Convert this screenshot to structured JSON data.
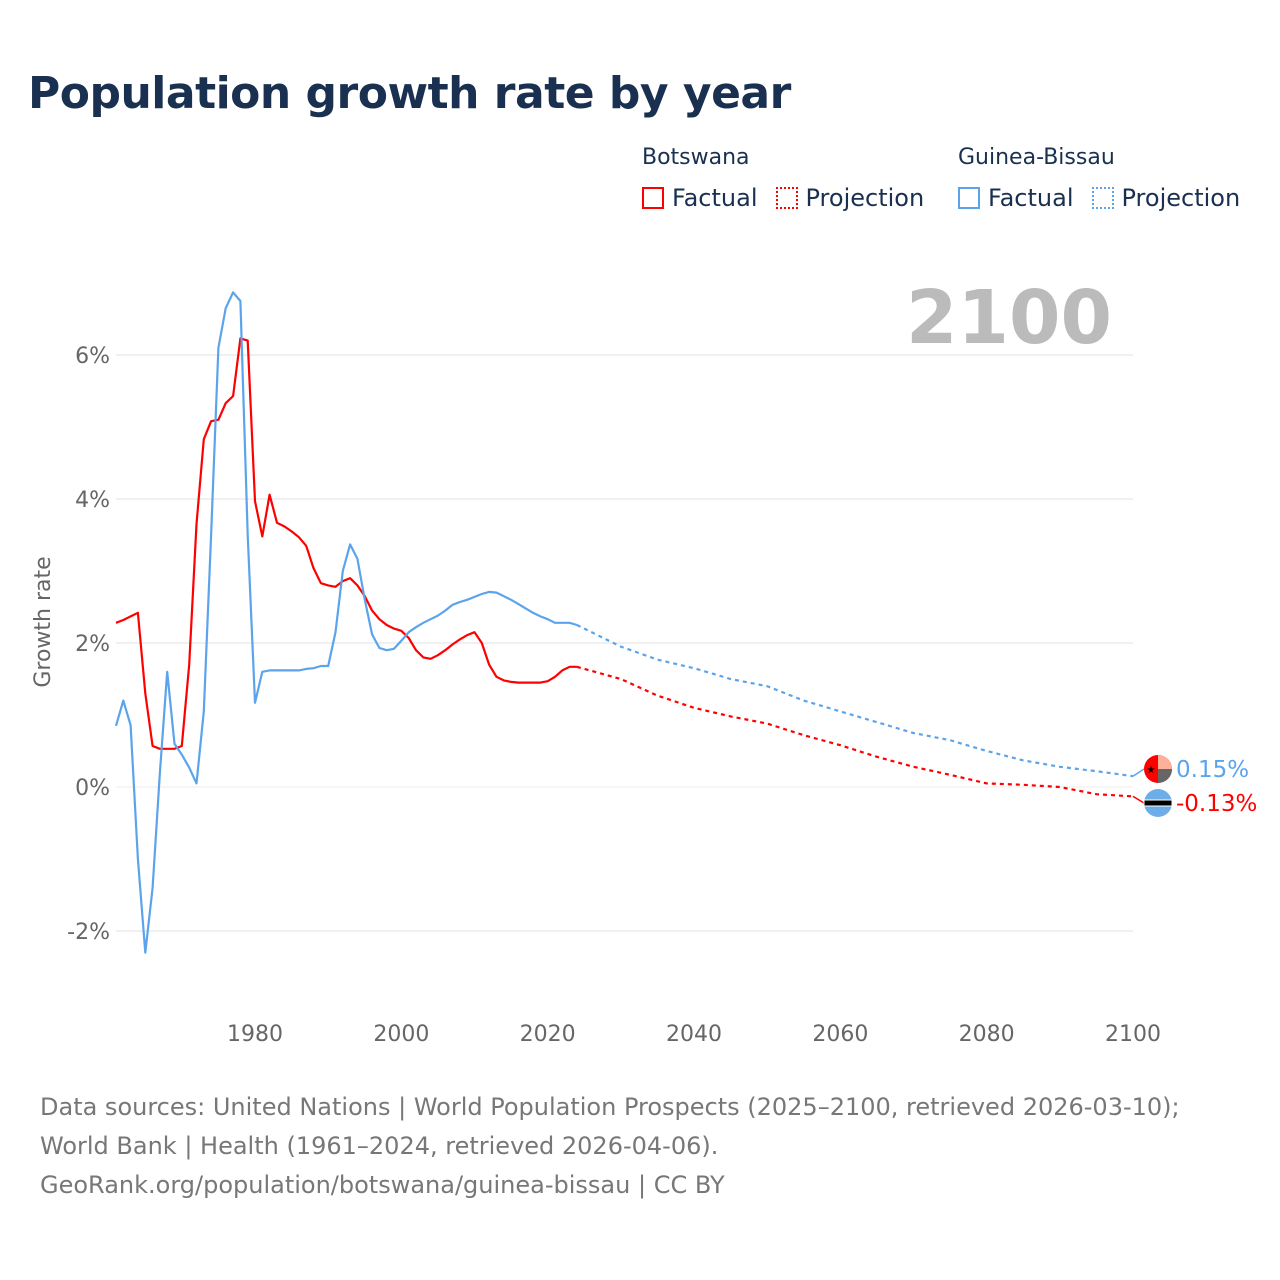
{
  "title": "Population growth rate by year",
  "legend": [
    {
      "country": "Botswana",
      "factual": "Factual",
      "projection": "Projection",
      "color": "#ff0000"
    },
    {
      "country": "Guinea-Bissau",
      "factual": "Factual",
      "projection": "Projection",
      "color": "#5ba4ec"
    }
  ],
  "footer": {
    "sources": "Data sources: United Nations | World Population Prospects (2025–2100, retrieved 2026-03-10); World Bank | Health (1961–2024, retrieved 2026-04-06).",
    "link": "GeoRank.org/population/botswana/guinea-bissau | CC BY"
  },
  "chart_data": {
    "type": "line",
    "title": "Population growth rate by year",
    "ylabel": "Growth rate",
    "xlabel": "",
    "year_label": "2100",
    "xlim": [
      1961,
      2100
    ],
    "ylim": [
      -3,
      7
    ],
    "x_ticks": [
      1980,
      2000,
      2020,
      2040,
      2060,
      2080,
      2100
    ],
    "y_ticks": [
      {
        "v": -2,
        "label": "-2%"
      },
      {
        "v": 0,
        "label": "0%"
      },
      {
        "v": 2,
        "label": "2%"
      },
      {
        "v": 4,
        "label": "4%"
      },
      {
        "v": 6,
        "label": "6%"
      }
    ],
    "grid": true,
    "series": [
      {
        "name": "Botswana",
        "color": "#ff0000",
        "end_label": "-0.13%",
        "flag_colors": [
          "#6daee8",
          "#000000",
          "#ffffff"
        ],
        "factual_start": 1961,
        "factual": [
          2.28,
          2.32,
          2.37,
          2.42,
          1.3,
          0.57,
          0.53,
          0.53,
          0.53,
          0.57,
          1.7,
          3.65,
          4.83,
          5.08,
          5.1,
          5.33,
          5.43,
          6.23,
          6.2,
          3.97,
          3.48,
          4.06,
          3.67,
          3.62,
          3.55,
          3.47,
          3.35,
          3.04,
          2.83,
          2.8,
          2.78,
          2.86,
          2.9,
          2.8,
          2.65,
          2.45,
          2.33,
          2.25,
          2.2,
          2.17,
          2.07,
          1.9,
          1.8,
          1.78,
          1.83,
          1.9,
          1.98,
          2.05,
          2.11,
          2.15,
          2.0,
          1.7,
          1.53,
          1.48,
          1.46,
          1.45,
          1.45,
          1.45,
          1.45,
          1.47,
          1.53,
          1.62,
          1.67,
          1.67
        ],
        "projection_x": [
          2024,
          2025,
          2030,
          2035,
          2040,
          2045,
          2050,
          2055,
          2060,
          2065,
          2070,
          2075,
          2080,
          2085,
          2090,
          2095,
          2100
        ],
        "projection": [
          1.67,
          1.64,
          1.5,
          1.27,
          1.1,
          0.98,
          0.88,
          0.72,
          0.58,
          0.42,
          0.28,
          0.17,
          0.05,
          0.03,
          0.0,
          -0.1,
          -0.13
        ]
      },
      {
        "name": "Guinea-Bissau",
        "color": "#5ba4ec",
        "end_label": "0.15%",
        "flag_colors": [
          "#ff0000",
          "#ffb09a",
          "#666666"
        ],
        "factual_start": 1961,
        "factual": [
          0.85,
          1.2,
          0.86,
          -1.0,
          -2.3,
          -1.4,
          0.2,
          1.6,
          0.6,
          0.45,
          0.27,
          0.05,
          1.05,
          3.5,
          6.1,
          6.65,
          6.87,
          6.75,
          3.5,
          1.17,
          1.6,
          1.62,
          1.62,
          1.62,
          1.62,
          1.62,
          1.64,
          1.65,
          1.68,
          1.68,
          2.15,
          3.0,
          3.37,
          3.17,
          2.6,
          2.12,
          1.93,
          1.9,
          1.92,
          2.03,
          2.15,
          2.22,
          2.28,
          2.33,
          2.38,
          2.45,
          2.53,
          2.57,
          2.6,
          2.64,
          2.68,
          2.71,
          2.7,
          2.65,
          2.6,
          2.54,
          2.48,
          2.42,
          2.37,
          2.33,
          2.28,
          2.28,
          2.28,
          2.25
        ],
        "projection_x": [
          2024,
          2025,
          2030,
          2035,
          2040,
          2045,
          2050,
          2055,
          2060,
          2065,
          2070,
          2075,
          2080,
          2085,
          2090,
          2095,
          2100
        ],
        "projection": [
          2.25,
          2.2,
          1.95,
          1.77,
          1.65,
          1.5,
          1.4,
          1.2,
          1.05,
          0.9,
          0.75,
          0.65,
          0.5,
          0.37,
          0.28,
          0.22,
          0.15
        ]
      }
    ]
  }
}
